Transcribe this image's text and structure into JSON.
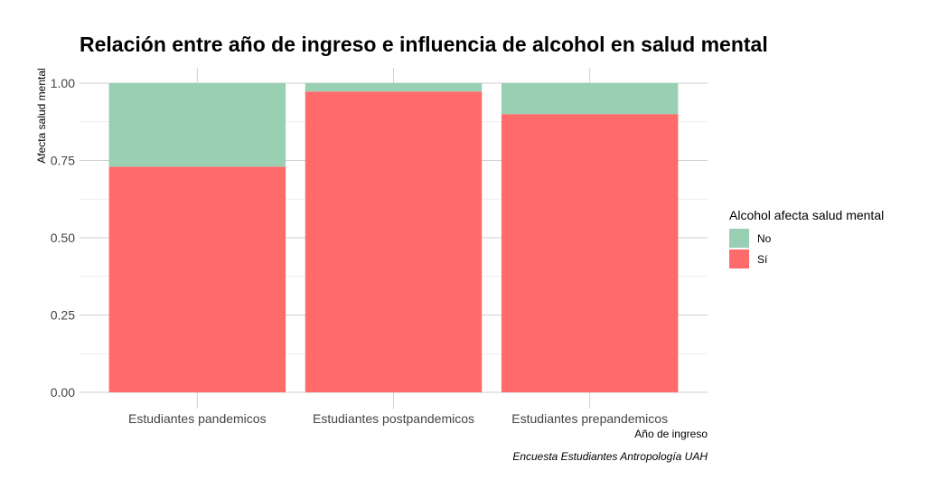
{
  "chart_data": {
    "type": "bar",
    "stacked": true,
    "title": "Relación entre año de ingreso e influencia de alcohol en salud mental",
    "xlabel": "Año de ingreso",
    "ylabel": "Afecta salud mental",
    "caption": "Encuesta Estudiantes Antropología UAH",
    "categories": [
      "Estudiantes pandemicos",
      "Estudiantes postpandemicos",
      "Estudiantes prepandemicos"
    ],
    "series": [
      {
        "name": "Sí",
        "color": "#ff6b6b",
        "values": [
          0.73,
          0.973,
          0.9
        ]
      },
      {
        "name": "No",
        "color": "#99cfb3",
        "values": [
          0.27,
          0.027,
          0.1
        ]
      }
    ],
    "ylim": [
      0,
      1
    ],
    "yticks": [
      "0.00",
      "0.25",
      "0.50",
      "0.75",
      "1.00"
    ],
    "grid": true,
    "legend": {
      "title": "Alcohol afecta salud mental",
      "position": "right",
      "items": [
        {
          "label": "No",
          "color": "#99cfb3"
        },
        {
          "label": "Sí",
          "color": "#ff6b6b"
        }
      ]
    }
  }
}
